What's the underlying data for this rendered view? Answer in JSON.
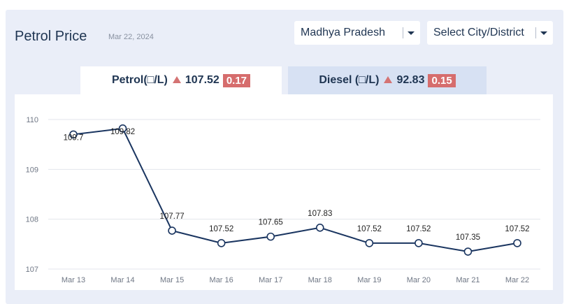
{
  "header": {
    "title": "Petrol Price",
    "date": "Mar 22, 2024"
  },
  "filters": {
    "state": "Madhya Pradesh",
    "city": "Select City/District"
  },
  "tabs": [
    {
      "label": "Petrol(□/L)",
      "value": "107.52",
      "change": "0.17",
      "active": true
    },
    {
      "label": "Diesel (□/L)",
      "value": "92.83",
      "change": "0.15",
      "active": false
    }
  ],
  "colors": {
    "line": "#1a3560",
    "change_badge": "#d66d6d",
    "active_tab": "#ffffff",
    "inactive_tab": "#d7e1f3"
  },
  "chart_data": {
    "type": "line",
    "title": "",
    "xlabel": "",
    "ylabel": "",
    "categories": [
      "Mar 13",
      "Mar 14",
      "Mar 15",
      "Mar 16",
      "Mar 17",
      "Mar 18",
      "Mar 19",
      "Mar 20",
      "Mar 21",
      "Mar 22"
    ],
    "series": [
      {
        "values": [
          109.7,
          109.82,
          107.77,
          107.52,
          107.65,
          107.83,
          107.52,
          107.52,
          107.35,
          107.52
        ],
        "labels": [
          "109.7",
          "109.82",
          "107.77",
          "107.52",
          "107.65",
          "107.83",
          "107.52",
          "107.52",
          "107.35",
          "107.52"
        ]
      }
    ],
    "y_ticks": [
      "107",
      "108",
      "109",
      "110"
    ],
    "ylim": [
      107,
      110
    ],
    "grid": true,
    "legend": "none"
  }
}
